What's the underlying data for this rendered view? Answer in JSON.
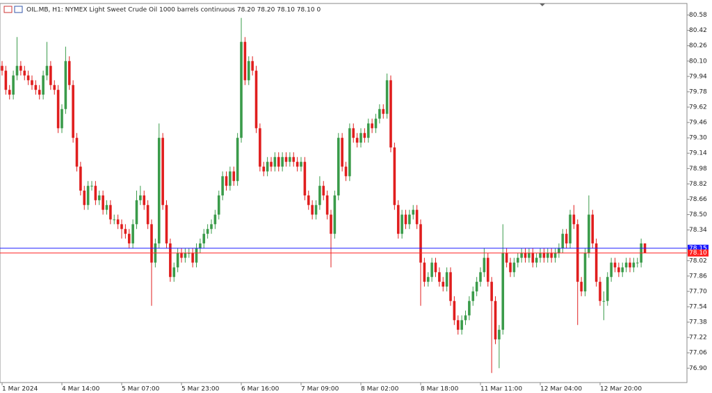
{
  "chart_data": {
    "type": "candlestick",
    "title": "OIL.MB, H1:  NYMEX Light Sweet Crude Oil 1000 barrels continuous  78.20 78.20 78.10 78.10  0",
    "up_color": "#3a9b4a",
    "down_color": "#e01e1e",
    "ylim": [
      76.75,
      80.7
    ],
    "yticks": [
      80.58,
      80.42,
      80.26,
      {
        "value": 80.1,
        "label": "80.10"
      },
      79.94,
      79.78,
      79.62,
      79.46,
      {
        "value": 79.3,
        "label": "79.30"
      },
      79.14,
      78.98,
      78.82,
      78.66,
      {
        "value": 78.5,
        "label": "78.50"
      },
      78.34,
      78.02,
      77.86,
      {
        "value": 77.7,
        "label": "77.70"
      },
      77.54,
      77.38,
      77.22,
      77.06,
      {
        "value": 76.9,
        "label": "76.90"
      }
    ],
    "price_lines": [
      {
        "value": 78.15,
        "label": "78.15",
        "color": "#1a1aff"
      },
      {
        "value": 78.1,
        "label": "78.10",
        "color": "#ff2020"
      }
    ],
    "categories": [
      "1 Mar 2024",
      null,
      null,
      null,
      null,
      null,
      null,
      null,
      null,
      null,
      null,
      null,
      null,
      null,
      null,
      null,
      "4 Mar 14:00",
      null,
      null,
      null,
      null,
      null,
      null,
      null,
      null,
      null,
      null,
      null,
      null,
      null,
      null,
      null,
      "5 Mar 07:00",
      null,
      null,
      null,
      null,
      null,
      null,
      null,
      null,
      null,
      null,
      null,
      null,
      null,
      null,
      null,
      "5 Mar 23:00",
      null,
      null,
      null,
      null,
      null,
      null,
      null,
      null,
      null,
      null,
      null,
      null,
      null,
      null,
      null,
      "6 Mar 16:00",
      null,
      null,
      null,
      null,
      null,
      null,
      null,
      null,
      null,
      null,
      null,
      null,
      null,
      null,
      null,
      "7 Mar 09:00",
      null,
      null,
      null,
      null,
      null,
      null,
      null,
      null,
      null,
      null,
      null,
      null,
      null,
      null,
      null,
      "8 Mar 02:00",
      null,
      null,
      null,
      null,
      null,
      null,
      null,
      null,
      null,
      null,
      null,
      null,
      null,
      null,
      null,
      "8 Mar 18:00",
      null,
      null,
      null,
      null,
      null,
      null,
      null,
      null,
      null,
      null,
      null,
      null,
      null,
      null,
      null,
      "11 Mar 11:00",
      null,
      null,
      null,
      null,
      null,
      null,
      null,
      null,
      null,
      null,
      null,
      null,
      null,
      null,
      null,
      "12 Mar 04:00",
      null,
      null,
      null,
      null,
      null,
      null,
      null,
      null,
      null,
      null,
      null,
      null,
      null,
      null,
      null,
      "12 Mar 20:00",
      null,
      null,
      null,
      null,
      null,
      null,
      null,
      null,
      null,
      null,
      null,
      null
    ],
    "ohlc": [
      [
        80.05,
        80.1,
        79.95,
        80.0
      ],
      [
        80.0,
        80.05,
        79.75,
        79.8
      ],
      [
        79.8,
        79.85,
        79.7,
        79.75
      ],
      [
        79.75,
        80.0,
        79.7,
        79.95
      ],
      [
        79.95,
        80.35,
        79.9,
        80.05
      ],
      [
        80.05,
        80.1,
        79.95,
        80.0
      ],
      [
        80.0,
        80.05,
        79.9,
        79.95
      ],
      [
        79.95,
        80.0,
        79.85,
        79.9
      ],
      [
        79.9,
        79.95,
        79.8,
        79.85
      ],
      [
        79.85,
        79.9,
        79.75,
        79.8
      ],
      [
        79.8,
        79.85,
        79.7,
        79.75
      ],
      [
        79.75,
        80.0,
        79.7,
        79.95
      ],
      [
        79.95,
        80.3,
        79.9,
        80.05
      ],
      [
        80.05,
        80.1,
        79.8,
        79.85
      ],
      [
        79.85,
        79.9,
        79.75,
        79.8
      ],
      [
        79.8,
        79.85,
        79.35,
        79.4
      ],
      [
        79.4,
        79.65,
        79.35,
        79.6
      ],
      [
        79.6,
        80.25,
        79.55,
        80.1
      ],
      [
        80.1,
        80.15,
        79.8,
        79.85
      ],
      [
        79.85,
        79.9,
        79.25,
        79.3
      ],
      [
        79.3,
        79.35,
        78.95,
        79.0
      ],
      [
        79.0,
        79.05,
        78.7,
        78.75
      ],
      [
        78.75,
        78.8,
        78.55,
        78.6
      ],
      [
        78.6,
        78.85,
        78.55,
        78.8
      ],
      [
        78.8,
        78.85,
        78.75,
        78.8
      ],
      [
        78.8,
        78.85,
        78.6,
        78.65
      ],
      [
        78.65,
        78.75,
        78.6,
        78.7
      ],
      [
        78.7,
        78.75,
        78.5,
        78.55
      ],
      [
        78.55,
        78.65,
        78.5,
        78.6
      ],
      [
        78.6,
        78.65,
        78.4,
        78.45
      ],
      [
        78.45,
        78.5,
        78.4,
        78.45
      ],
      [
        78.45,
        78.5,
        78.35,
        78.4
      ],
      [
        78.4,
        78.45,
        78.25,
        78.35
      ],
      [
        78.35,
        78.4,
        78.25,
        78.3
      ],
      [
        78.3,
        78.35,
        78.15,
        78.2
      ],
      [
        78.2,
        78.45,
        78.15,
        78.4
      ],
      [
        78.4,
        78.75,
        78.35,
        78.65
      ],
      [
        78.65,
        78.8,
        78.6,
        78.7
      ],
      [
        78.7,
        78.75,
        78.55,
        78.6
      ],
      [
        78.6,
        78.65,
        78.35,
        78.4
      ],
      [
        78.4,
        78.45,
        77.55,
        78.0
      ],
      [
        78.0,
        78.25,
        77.95,
        78.2
      ],
      [
        78.2,
        79.45,
        78.15,
        79.3
      ],
      [
        79.3,
        79.35,
        78.55,
        78.6
      ],
      [
        78.6,
        78.65,
        78.15,
        78.2
      ],
      [
        78.2,
        78.25,
        77.8,
        77.85
      ],
      [
        77.85,
        78.0,
        77.8,
        77.95
      ],
      [
        77.95,
        78.15,
        77.9,
        78.1
      ],
      [
        78.1,
        78.15,
        78.0,
        78.05
      ],
      [
        78.05,
        78.15,
        78.0,
        78.1
      ],
      [
        78.1,
        78.15,
        78.05,
        78.1
      ],
      [
        78.1,
        78.15,
        77.95,
        78.0
      ],
      [
        78.0,
        78.2,
        77.95,
        78.15
      ],
      [
        78.15,
        78.25,
        78.1,
        78.2
      ],
      [
        78.2,
        78.35,
        78.15,
        78.3
      ],
      [
        78.3,
        78.4,
        78.25,
        78.35
      ],
      [
        78.35,
        78.45,
        78.3,
        78.4
      ],
      [
        78.4,
        78.55,
        78.35,
        78.5
      ],
      [
        78.5,
        78.75,
        78.45,
        78.7
      ],
      [
        78.7,
        78.95,
        78.65,
        78.9
      ],
      [
        78.9,
        78.95,
        78.75,
        78.8
      ],
      [
        78.8,
        79.0,
        78.75,
        78.95
      ],
      [
        78.95,
        79.0,
        78.8,
        78.85
      ],
      [
        78.85,
        79.35,
        78.8,
        79.3
      ],
      [
        79.3,
        80.55,
        79.25,
        80.3
      ],
      [
        80.3,
        80.35,
        79.85,
        79.9
      ],
      [
        79.9,
        80.15,
        79.85,
        80.1
      ],
      [
        80.1,
        80.15,
        79.95,
        80.0
      ],
      [
        80.0,
        80.05,
        79.35,
        79.4
      ],
      [
        79.4,
        79.45,
        78.95,
        79.0
      ],
      [
        79.0,
        79.05,
        78.9,
        78.95
      ],
      [
        78.95,
        79.1,
        78.9,
        79.05
      ],
      [
        79.05,
        79.1,
        78.95,
        79.0
      ],
      [
        79.0,
        79.15,
        78.95,
        79.1
      ],
      [
        79.1,
        79.15,
        78.95,
        79.0
      ],
      [
        79.0,
        79.15,
        78.95,
        79.1
      ],
      [
        79.1,
        79.15,
        79.0,
        79.05
      ],
      [
        79.05,
        79.15,
        79.0,
        79.1
      ],
      [
        79.1,
        79.15,
        79.0,
        79.05
      ],
      [
        79.05,
        79.1,
        78.95,
        79.0
      ],
      [
        79.0,
        79.1,
        78.95,
        79.05
      ],
      [
        79.05,
        79.1,
        78.65,
        78.7
      ],
      [
        78.7,
        78.75,
        78.55,
        78.6
      ],
      [
        78.6,
        78.65,
        78.45,
        78.5
      ],
      [
        78.5,
        78.65,
        78.45,
        78.6
      ],
      [
        78.6,
        78.9,
        78.55,
        78.8
      ],
      [
        78.8,
        78.85,
        78.65,
        78.7
      ],
      [
        78.7,
        78.75,
        78.45,
        78.5
      ],
      [
        78.5,
        78.55,
        77.95,
        78.3
      ],
      [
        78.3,
        78.75,
        78.25,
        78.7
      ],
      [
        78.7,
        79.35,
        78.65,
        79.3
      ],
      [
        79.3,
        79.35,
        78.95,
        79.0
      ],
      [
        79.0,
        79.05,
        78.85,
        78.9
      ],
      [
        78.9,
        79.45,
        78.85,
        79.4
      ],
      [
        79.4,
        79.45,
        79.25,
        79.3
      ],
      [
        79.3,
        79.35,
        79.2,
        79.25
      ],
      [
        79.25,
        79.4,
        79.2,
        79.35
      ],
      [
        79.35,
        79.4,
        79.25,
        79.3
      ],
      [
        79.3,
        79.5,
        79.25,
        79.45
      ],
      [
        79.45,
        79.5,
        79.35,
        79.4
      ],
      [
        79.4,
        79.55,
        79.35,
        79.5
      ],
      [
        79.5,
        79.65,
        79.45,
        79.6
      ],
      [
        79.6,
        79.65,
        79.5,
        79.55
      ],
      [
        79.55,
        79.97,
        79.5,
        79.9
      ],
      [
        79.9,
        79.95,
        79.15,
        79.2
      ],
      [
        79.2,
        79.25,
        78.55,
        78.6
      ],
      [
        78.6,
        78.65,
        78.25,
        78.3
      ],
      [
        78.3,
        78.55,
        78.25,
        78.5
      ],
      [
        78.5,
        78.55,
        78.35,
        78.4
      ],
      [
        78.4,
        78.55,
        78.35,
        78.5
      ],
      [
        78.5,
        78.6,
        78.45,
        78.55
      ],
      [
        78.55,
        78.6,
        78.35,
        78.4
      ],
      [
        78.4,
        78.45,
        77.55,
        78.0
      ],
      [
        78.0,
        78.05,
        77.75,
        77.8
      ],
      [
        77.8,
        77.9,
        77.75,
        77.85
      ],
      [
        77.85,
        78.05,
        77.8,
        78.0
      ],
      [
        78.0,
        78.05,
        77.85,
        77.9
      ],
      [
        77.9,
        77.95,
        77.75,
        77.8
      ],
      [
        77.8,
        77.85,
        77.7,
        77.75
      ],
      [
        77.75,
        77.95,
        77.7,
        77.9
      ],
      [
        77.9,
        77.95,
        77.55,
        77.6
      ],
      [
        77.6,
        77.65,
        77.35,
        77.4
      ],
      [
        77.4,
        77.45,
        77.25,
        77.3
      ],
      [
        77.3,
        77.45,
        77.25,
        77.4
      ],
      [
        77.4,
        77.5,
        77.35,
        77.45
      ],
      [
        77.45,
        77.65,
        77.4,
        77.6
      ],
      [
        77.6,
        77.75,
        77.55,
        77.7
      ],
      [
        77.7,
        77.85,
        77.65,
        77.8
      ],
      [
        77.8,
        77.95,
        77.75,
        77.9
      ],
      [
        77.9,
        78.15,
        77.85,
        78.05
      ],
      [
        78.05,
        78.1,
        77.75,
        77.8
      ],
      [
        77.8,
        77.85,
        76.85,
        77.6
      ],
      [
        77.6,
        77.65,
        77.15,
        77.2
      ],
      [
        77.2,
        77.35,
        76.9,
        77.3
      ],
      [
        77.3,
        78.4,
        77.25,
        78.1
      ],
      [
        78.1,
        78.15,
        77.95,
        78.0
      ],
      [
        78.0,
        78.05,
        77.85,
        77.9
      ],
      [
        77.9,
        78.05,
        77.85,
        78.0
      ],
      [
        78.0,
        78.1,
        77.95,
        78.05
      ],
      [
        78.05,
        78.15,
        78.0,
        78.1
      ],
      [
        78.1,
        78.15,
        78.0,
        78.05
      ],
      [
        78.05,
        78.15,
        78.0,
        78.1
      ],
      [
        78.1,
        78.15,
        77.95,
        78.0
      ],
      [
        78.0,
        78.1,
        77.95,
        78.05
      ],
      [
        78.05,
        78.15,
        78.0,
        78.1
      ],
      [
        78.1,
        78.15,
        78.0,
        78.05
      ],
      [
        78.05,
        78.15,
        78.0,
        78.1
      ],
      [
        78.1,
        78.15,
        78.0,
        78.05
      ],
      [
        78.05,
        78.15,
        78.0,
        78.1
      ],
      [
        78.1,
        78.2,
        78.05,
        78.15
      ],
      [
        78.15,
        78.35,
        78.1,
        78.3
      ],
      [
        78.3,
        78.35,
        78.15,
        78.2
      ],
      [
        78.2,
        78.55,
        78.15,
        78.5
      ],
      [
        78.5,
        78.6,
        78.35,
        78.4
      ],
      [
        78.4,
        78.45,
        77.35,
        77.8
      ],
      [
        77.8,
        77.85,
        77.65,
        77.7
      ],
      [
        77.7,
        78.15,
        77.65,
        78.1
      ],
      [
        78.1,
        78.7,
        78.05,
        78.5
      ],
      [
        78.5,
        78.55,
        78.15,
        78.2
      ],
      [
        78.2,
        78.25,
        77.75,
        77.8
      ],
      [
        77.8,
        77.85,
        77.55,
        77.6
      ],
      [
        77.6,
        77.7,
        77.4,
        77.6
      ],
      [
        77.6,
        77.9,
        77.55,
        77.85
      ],
      [
        77.85,
        78.05,
        77.8,
        78.0
      ],
      [
        78.0,
        78.05,
        77.9,
        77.95
      ],
      [
        77.95,
        78.0,
        77.85,
        77.9
      ],
      [
        77.9,
        78.0,
        77.85,
        77.95
      ],
      [
        77.95,
        78.05,
        77.9,
        78.0
      ],
      [
        78.0,
        78.05,
        77.9,
        77.95
      ],
      [
        77.95,
        78.05,
        77.9,
        78.0
      ],
      [
        78.0,
        78.05,
        77.95,
        78.0
      ],
      [
        78.0,
        78.25,
        77.95,
        78.2
      ],
      [
        78.2,
        78.2,
        78.1,
        78.1
      ]
    ]
  }
}
